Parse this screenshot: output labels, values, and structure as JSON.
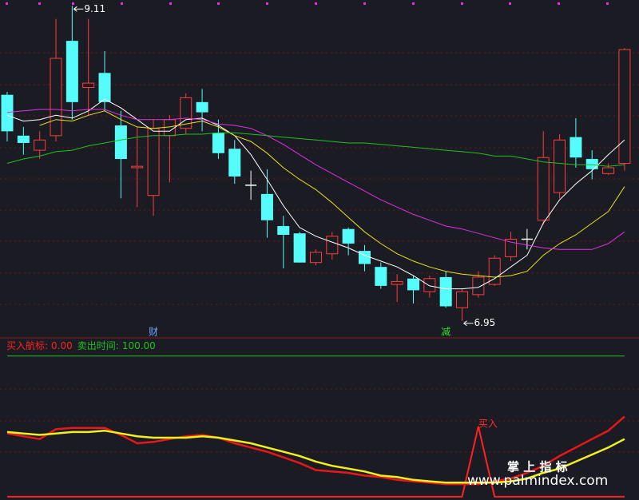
{
  "chart_data": [
    {
      "type": "candlestick",
      "up_color": "#ff3b3b",
      "down_color": "#54fcfc",
      "flat_color": "#ffffff",
      "ylim": [
        6.85,
        9.15
      ],
      "open": [
        8.5,
        8.22,
        8.12,
        8.22,
        8.87,
        8.55,
        8.65,
        8.29,
        8.0,
        7.81,
        8.22,
        8.27,
        8.45,
        8.24,
        8.13,
        7.88,
        7.82,
        7.6,
        7.55,
        7.35,
        7.41,
        7.58,
        7.43,
        7.32,
        7.2,
        7.24,
        7.15,
        7.25,
        7.04,
        7.13,
        7.2,
        7.39,
        7.51,
        7.64,
        7.83,
        8.21,
        8.06,
        7.96,
        8.03
      ],
      "close": [
        8.25,
        8.17,
        8.19,
        8.75,
        8.45,
        8.58,
        8.45,
        8.06,
        8.01,
        8.27,
        8.33,
        8.48,
        8.38,
        8.1,
        7.94,
        7.88,
        7.64,
        7.54,
        7.35,
        7.42,
        7.53,
        7.48,
        7.34,
        7.19,
        7.22,
        7.16,
        7.24,
        7.05,
        7.15,
        7.25,
        7.38,
        7.51,
        7.51,
        8.07,
        8.19,
        8.07,
        7.99,
        8.0,
        8.81
      ],
      "high": [
        8.52,
        8.28,
        8.25,
        9.02,
        9.11,
        9.02,
        8.8,
        8.39,
        8.28,
        8.33,
        8.36,
        8.51,
        8.54,
        8.33,
        8.19,
        7.98,
        7.99,
        7.67,
        7.56,
        7.44,
        7.56,
        7.59,
        7.47,
        7.35,
        7.27,
        7.26,
        7.26,
        7.29,
        7.17,
        7.29,
        7.4,
        7.56,
        7.58,
        8.25,
        8.23,
        8.34,
        8.12,
        8.03,
        8.82
      ],
      "low": [
        8.18,
        8.09,
        8.06,
        8.18,
        8.33,
        8.36,
        8.39,
        7.79,
        7.73,
        7.67,
        7.9,
        8.23,
        8.25,
        8.06,
        7.89,
        7.78,
        7.52,
        7.31,
        7.35,
        7.33,
        7.37,
        7.4,
        7.29,
        7.17,
        7.08,
        7.07,
        7.11,
        7.04,
        6.95,
        7.11,
        7.19,
        7.36,
        7.44,
        7.61,
        7.79,
        8.0,
        7.92,
        7.95,
        7.98
      ],
      "series": [
        {
          "color": "#ffffff",
          "values": [
            8.36,
            8.32,
            8.33,
            8.36,
            8.34,
            8.39,
            8.47,
            8.41,
            8.33,
            8.25,
            8.25,
            8.33,
            8.34,
            8.29,
            8.22,
            8.09,
            7.92,
            7.74,
            7.59,
            7.53,
            7.49,
            7.45,
            7.4,
            7.36,
            7.32,
            7.26,
            7.19,
            7.17,
            7.17,
            7.18,
            7.24,
            7.32,
            7.4,
            7.62,
            7.78,
            7.89,
            7.98,
            8.09,
            8.19
          ]
        },
        {
          "color": "#e8e020",
          "values": [
            null,
            null,
            8.29,
            8.33,
            8.32,
            8.36,
            8.39,
            8.33,
            8.28,
            8.27,
            8.28,
            8.3,
            8.32,
            8.28,
            8.22,
            8.18,
            8.1,
            8.0,
            7.92,
            7.85,
            7.76,
            7.66,
            7.56,
            7.48,
            7.41,
            7.36,
            7.32,
            7.29,
            7.27,
            7.26,
            7.25,
            7.26,
            7.29,
            7.4,
            7.48,
            7.54,
            7.62,
            7.7,
            7.87
          ]
        },
        {
          "color": "#e030e0",
          "values": [
            8.38,
            8.39,
            8.4,
            8.4,
            8.39,
            8.4,
            8.4,
            8.36,
            8.33,
            8.33,
            8.33,
            8.34,
            8.33,
            8.3,
            8.29,
            8.27,
            8.22,
            8.16,
            8.09,
            8.02,
            7.96,
            7.9,
            7.84,
            7.78,
            7.73,
            7.68,
            7.64,
            7.6,
            7.58,
            7.55,
            7.52,
            7.49,
            7.47,
            7.45,
            7.44,
            7.44,
            7.44,
            7.48,
            7.56
          ]
        },
        {
          "color": "#20c020",
          "values": [
            8.03,
            8.06,
            8.08,
            8.11,
            8.12,
            8.15,
            8.17,
            8.19,
            8.21,
            8.22,
            8.22,
            8.23,
            8.23,
            8.24,
            8.24,
            8.23,
            8.22,
            8.21,
            8.2,
            8.19,
            8.18,
            8.17,
            8.17,
            8.16,
            8.15,
            8.14,
            8.13,
            8.12,
            8.11,
            8.1,
            8.08,
            8.08,
            8.06,
            8.04,
            8.03,
            8.02,
            8.02,
            8.01,
            8.02
          ]
        }
      ],
      "annotations": [
        {
          "value": 9.11,
          "index": 4
        },
        {
          "value": 6.95,
          "index": 28
        }
      ],
      "markers": [
        {
          "text": "财",
          "index": 9,
          "color": "#6aa8ff"
        },
        {
          "text": "减",
          "index": 27,
          "color": "#30e030"
        }
      ]
    },
    {
      "type": "line",
      "ylim": [
        -2.3,
        109
      ],
      "series": [
        {
          "name": "买入航标:",
          "last_value_label": "0.00",
          "color": "#ff2020",
          "width": 2,
          "values": [
            0,
            0,
            0,
            0,
            0,
            0,
            0,
            0,
            0,
            0,
            0,
            0,
            0,
            0,
            0,
            0,
            0,
            0,
            0,
            0,
            0,
            0,
            0,
            0,
            0,
            0,
            0,
            0,
            0,
            50,
            0,
            0,
            0,
            0,
            0,
            0,
            0,
            0,
            0
          ]
        },
        {
          "name": "卖出时间:",
          "last_value_label": "100.00",
          "color": "#20c020",
          "width": 1,
          "values": [
            100,
            100,
            100,
            100,
            100,
            100,
            100,
            100,
            100,
            100,
            100,
            100,
            100,
            100,
            100,
            100,
            100,
            100,
            100,
            100,
            100,
            100,
            100,
            100,
            100,
            100,
            100,
            100,
            100,
            100,
            100,
            100,
            100,
            100,
            100,
            100,
            100,
            100,
            100
          ]
        },
        {
          "color": "#e81818",
          "width": 2.5,
          "values": [
            45,
            43,
            41,
            48,
            49,
            49,
            49,
            44,
            38,
            39,
            41,
            43,
            44,
            42,
            38,
            35,
            32,
            28,
            24,
            19,
            18,
            17,
            15,
            14,
            12,
            11,
            10,
            9,
            9,
            9,
            11,
            13,
            17,
            22,
            29,
            35,
            41,
            47,
            57
          ]
        },
        {
          "color": "#f0f020",
          "width": 2.5,
          "values": [
            46,
            45,
            44,
            45,
            46,
            46,
            47,
            45,
            43,
            42,
            42,
            42,
            43,
            42,
            40,
            38,
            35,
            32,
            29,
            25,
            22,
            20,
            18,
            15,
            14,
            12,
            11,
            10,
            10,
            10,
            10,
            11,
            13,
            17,
            20,
            25,
            30,
            35,
            41
          ]
        }
      ],
      "annotations": [
        {
          "text": "买入",
          "series": 0,
          "index": 29
        }
      ]
    }
  ],
  "watermark": {
    "title": "掌 上 指 标",
    "url": "www.palmindex.com"
  }
}
